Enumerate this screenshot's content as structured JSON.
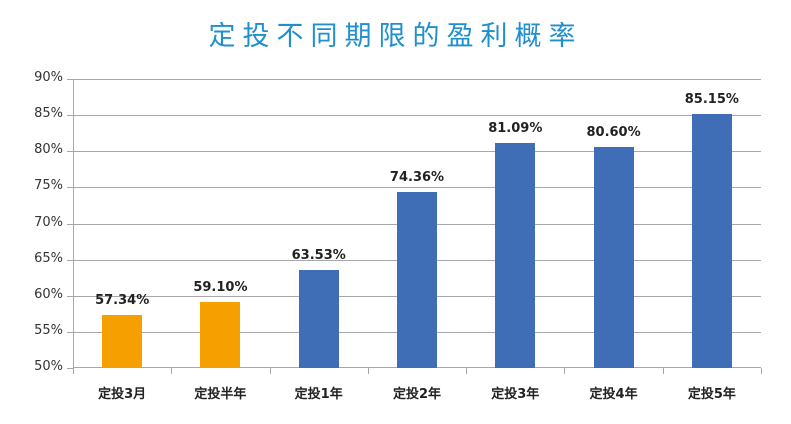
{
  "title": "定投不同期限的盈利概率",
  "colors": {
    "title": "#1F8FCE",
    "short_term": "#F59F00",
    "long_term": "#3F6EB6",
    "grid": "#A8A8A8"
  },
  "chart_data": {
    "type": "bar",
    "title": "定投不同期限的盈利概率",
    "xlabel": "",
    "ylabel": "",
    "categories": [
      "定投3月",
      "定投半年",
      "定投1年",
      "定投2年",
      "定投3年",
      "定投4年",
      "定投5年"
    ],
    "values": [
      57.34,
      59.1,
      63.53,
      74.36,
      81.09,
      80.6,
      85.15
    ],
    "value_labels": [
      "57.34%",
      "59.10%",
      "63.53%",
      "74.36%",
      "81.09%",
      "80.60%",
      "85.15%"
    ],
    "bar_colors": [
      "#F59F00",
      "#F59F00",
      "#3F6EB6",
      "#3F6EB6",
      "#3F6EB6",
      "#3F6EB6",
      "#3F6EB6"
    ],
    "ylim": [
      50,
      90
    ],
    "yticks": [
      "50%",
      "55%",
      "60%",
      "65%",
      "70%",
      "75%",
      "80%",
      "85%",
      "90%"
    ],
    "grid": true,
    "legend": null
  }
}
